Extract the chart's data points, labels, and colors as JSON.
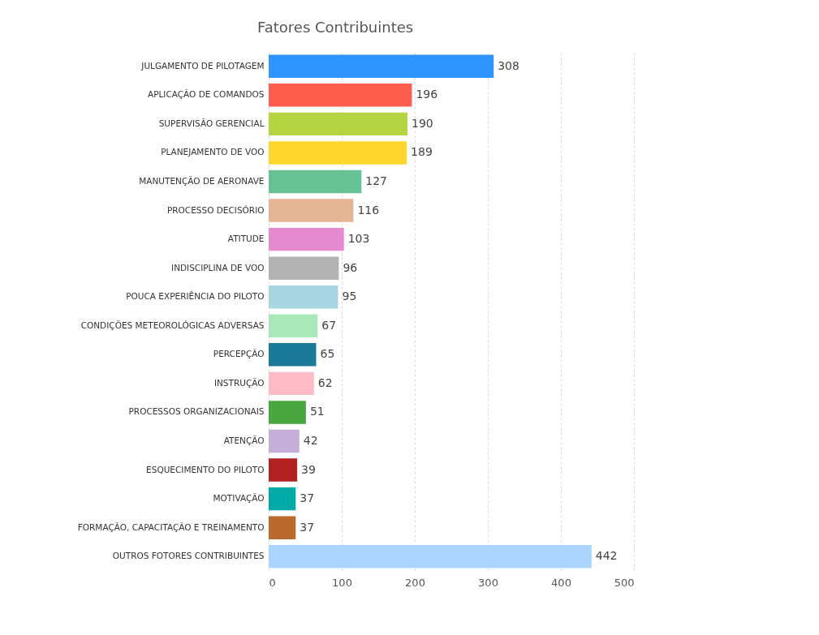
{
  "chart_data": {
    "type": "bar",
    "orientation": "horizontal",
    "title": "Fatores Contribuintes",
    "categories": [
      "JULGAMENTO DE PILOTAGEM",
      "APLICAÇÃO DE COMANDOS",
      "SUPERVISÃO GERENCIAL",
      "PLANEJAMENTO DE VOO",
      "MANUTENÇÃO DE AERONAVE",
      "PROCESSO DECISÓRIO",
      "ATITUDE",
      "INDISCIPLINA DE VOO",
      "POUCA EXPERIÊNCIA DO PILOTO",
      "CONDIÇÕES METEOROLÓGICAS ADVERSAS",
      "PERCEPÇÃO",
      "INSTRUÇÃO",
      "PROCESSOS ORGANIZACIONAIS",
      "ATENÇÃO",
      "ESQUECIMENTO DO PILOTO",
      "MOTIVAÇÃO",
      "FORMAÇÃO, CAPACITAÇÃO E TREINAMENTO",
      "OUTROS FOTORES CONTRIBUINTES"
    ],
    "values": [
      308,
      196,
      190,
      189,
      127,
      116,
      103,
      96,
      95,
      67,
      65,
      62,
      51,
      42,
      39,
      37,
      37,
      442
    ],
    "colors": [
      "#2e93fa",
      "#fe5c4c",
      "#b5d442",
      "#fed72e",
      "#66c295",
      "#e4b594",
      "#e68ad0",
      "#b3b3b3",
      "#a8d7e3",
      "#a9e8b8",
      "#1c7a99",
      "#ffbcc6",
      "#4aa63f",
      "#c4b0d8",
      "#b22222",
      "#00aaa8",
      "#bb6a2e",
      "#acd5fd"
    ],
    "xlim": [
      0,
      500
    ],
    "xticks": [
      0,
      100,
      200,
      300,
      400,
      500
    ],
    "grid": "x",
    "data_labels": true
  }
}
